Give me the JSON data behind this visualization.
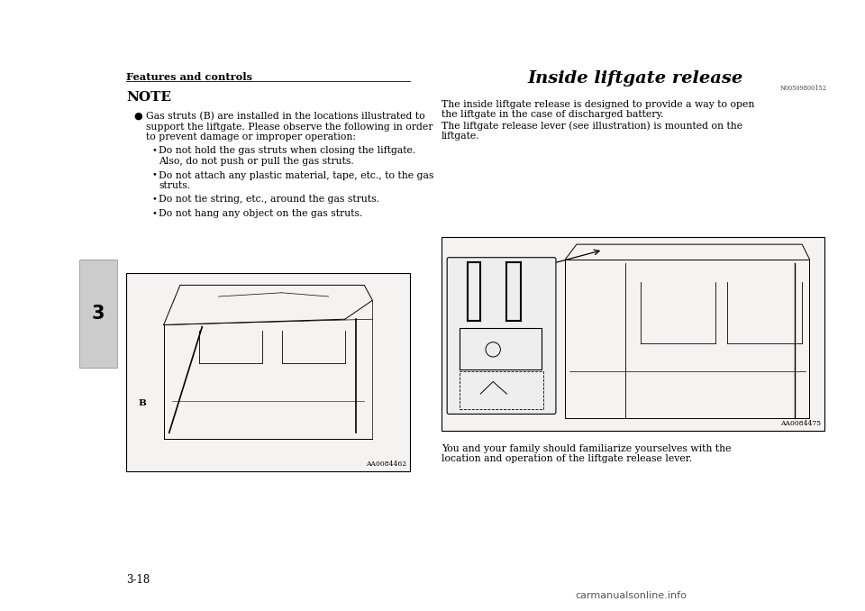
{
  "bg_color": "#ffffff",
  "page_width": 9.6,
  "page_height": 6.78,
  "dpi": 100,
  "header_text": "Features and controls",
  "section_number": "3",
  "note_title": "NOTE",
  "bullet_main": "Gas struts (B) are installed in the locations illustrated to support the liftgate. Please observe the following in order to prevent damage or improper operation:",
  "subbullets": [
    "Do not hold the gas struts when closing the liftgate.\n     Also, do not push or pull the gas struts.",
    "Do not attach any plastic material, tape, etc., to the gas\n     struts.",
    "Do not tie string, etc., around the gas struts.",
    "Do not hang any object on the gas struts."
  ],
  "left_image_label": "AA0084462",
  "right_title": "Inside liftgate release",
  "right_ref": "N00509800152",
  "right_para1_lines": [
    "The inside liftgate release is designed to provide a way to open",
    "the liftgate in the case of discharged battery.",
    "The liftgate release lever (see illustration) is mounted on the",
    "liftgate."
  ],
  "right_image_label": "AA0084475",
  "right_para2_lines": [
    "You and your family should familiarize yourselves with the",
    "location and operation of the liftgate release lever."
  ],
  "page_num": "3-18",
  "watermark": "carmanualsonline.info"
}
